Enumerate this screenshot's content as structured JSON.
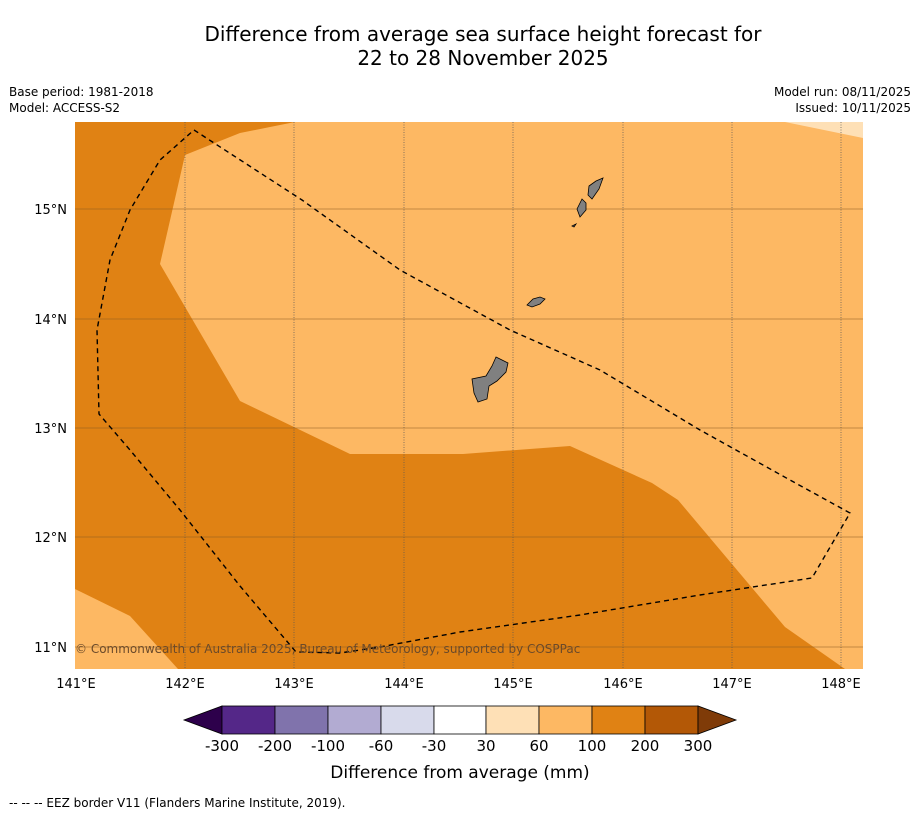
{
  "title": {
    "line1": "Difference from average sea surface height forecast for",
    "line2": "22 to 28 November 2025"
  },
  "info_left": {
    "base_period": "Base period: 1981-2018",
    "model": "Model: ACCESS-S2"
  },
  "info_right": {
    "model_run": "Model run: 08/11/2025",
    "issued": "Issued: 10/11/2025"
  },
  "map": {
    "lat_labels": [
      "15°N",
      "14°N",
      "13°N",
      "12°N",
      "11°N"
    ],
    "lon_labels": [
      "141°E",
      "142°E",
      "143°E",
      "144°E",
      "145°E",
      "146°E",
      "147°E",
      "148°E"
    ],
    "copyright": "© Commonwealth of Australia 2025, Bureau of Meteorology, supported by COSPPac",
    "colors": {
      "land": "#808080",
      "band_100_200": "#e08214",
      "band_60_100": "#fdb863",
      "band_30_60": "#fee0b6"
    }
  },
  "colorbar": {
    "ticks": [
      "-300",
      "-200",
      "-100",
      "-60",
      "-30",
      "30",
      "60",
      "100",
      "200",
      "300"
    ],
    "colors": [
      "#2d004b",
      "#542788",
      "#8073ac",
      "#b2abd2",
      "#d8daeb",
      "#ffffff",
      "#fee0b6",
      "#fdb863",
      "#e08214",
      "#b35806",
      "#7f3b08"
    ],
    "label": "Difference from average (mm)"
  },
  "footnote": "--  --  -- EEZ border V11 (Flanders Marine Institute, 2019)."
}
